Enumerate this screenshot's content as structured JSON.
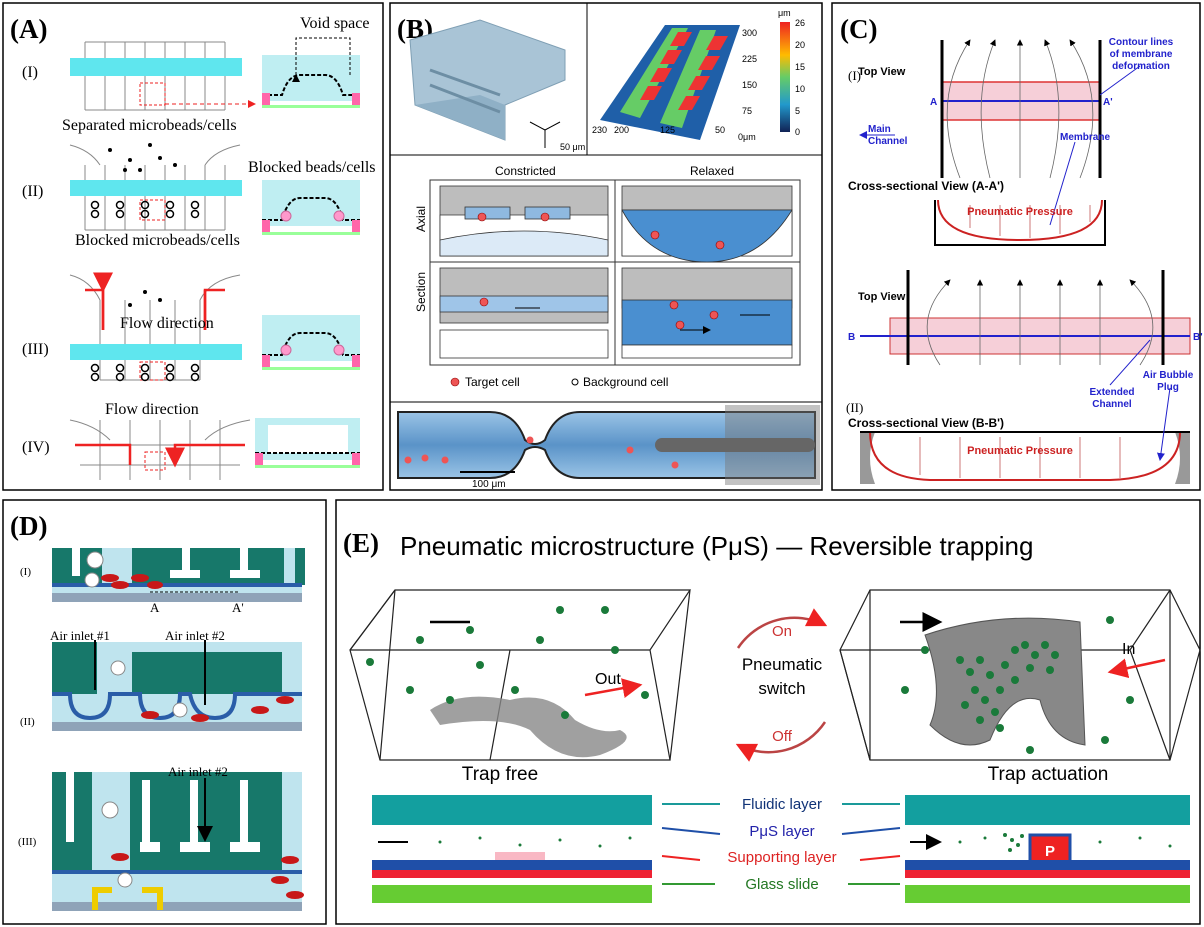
{
  "panels": {
    "A": {
      "label": "(A)",
      "rows": [
        "(I)",
        "(II)",
        "(III)",
        "(IV)"
      ],
      "void_space": "Void space",
      "separated": "Separated microbeads/cells",
      "blocked_beads": "Blocked beads/cells",
      "blocked_micro": "Blocked microbeads/cells",
      "flow_3": "Flow direction",
      "flow_4": "Flow direction"
    },
    "B": {
      "label": "(B)",
      "scale_3d": "50 μm",
      "colorbar_unit": "μm",
      "colorbar": [
        "26",
        "20",
        "15",
        "10",
        "5",
        "0"
      ],
      "depth_axis": [
        "300",
        "225",
        "150",
        "75"
      ],
      "width_axis": [
        "230",
        "200",
        "125",
        "50",
        "0μm"
      ],
      "constricted": "Constricted",
      "relaxed": "Relaxed",
      "axial": "Axial",
      "section": "Section",
      "target": "Target cell",
      "background": "Background cell",
      "scale_bar": "100 μm"
    },
    "C": {
      "label": "(C)",
      "top_view_1": "Top View",
      "row_1": "(I)",
      "a": "A",
      "a_prime": "A'",
      "contour": [
        "Contour lines",
        "of membrane",
        "deformation"
      ],
      "main_channel": [
        "Main",
        "Channel"
      ],
      "membrane": "Membrane",
      "cross_1": "Cross-sectional View (A-A')",
      "pressure_1": "Pneumatic Pressure",
      "top_view_2": "Top View",
      "b": "B",
      "b_prime": "B'",
      "row_2": "(II)",
      "extended": [
        "Extended",
        "Channel"
      ],
      "bubble": [
        "Air Bubble",
        "Plug"
      ],
      "cross_2": "Cross-sectional View (B-B')",
      "pressure_2": "Pneumatic Pressure"
    },
    "D": {
      "label": "(D)",
      "row_1": "(I)",
      "a": "A",
      "a_prime": "A'",
      "inlet_1": "Air inlet #1",
      "inlet_2": "Air inlet #2",
      "row_2": "(II)",
      "inlet_3": "Air inlet #2",
      "row_3": "(III)"
    },
    "E": {
      "label": "(E)",
      "title": "Pneumatic  microstructure (PμS) — Reversible trapping",
      "on": "On",
      "switch": [
        "Pneumatic",
        "switch"
      ],
      "off": "Off",
      "out": "Out",
      "in": "In",
      "trap_free": "Trap free",
      "trap_actuation": "Trap actuation",
      "layers": [
        "Fluidic layer",
        "PμS layer",
        "Supporting layer",
        "Glass slide"
      ],
      "p": "P"
    }
  }
}
